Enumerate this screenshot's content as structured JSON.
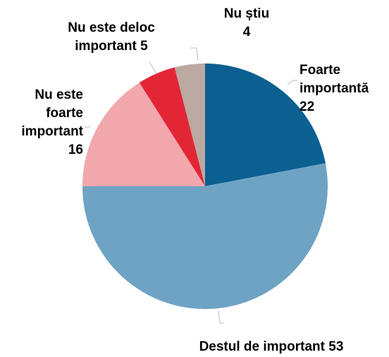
{
  "chart_data": {
    "type": "pie",
    "categories": [
      "Foarte importantă",
      "Destul de important",
      "Nu este foarte important",
      "Nu este deloc important",
      "Nu știu"
    ],
    "values": [
      22,
      53,
      16,
      5,
      4
    ],
    "colors": [
      "#0b5f91",
      "#6fa3c4",
      "#f2a7ad",
      "#e32636",
      "#bba9a2"
    ],
    "start_angle": "top",
    "direction": "clockwise"
  }
}
